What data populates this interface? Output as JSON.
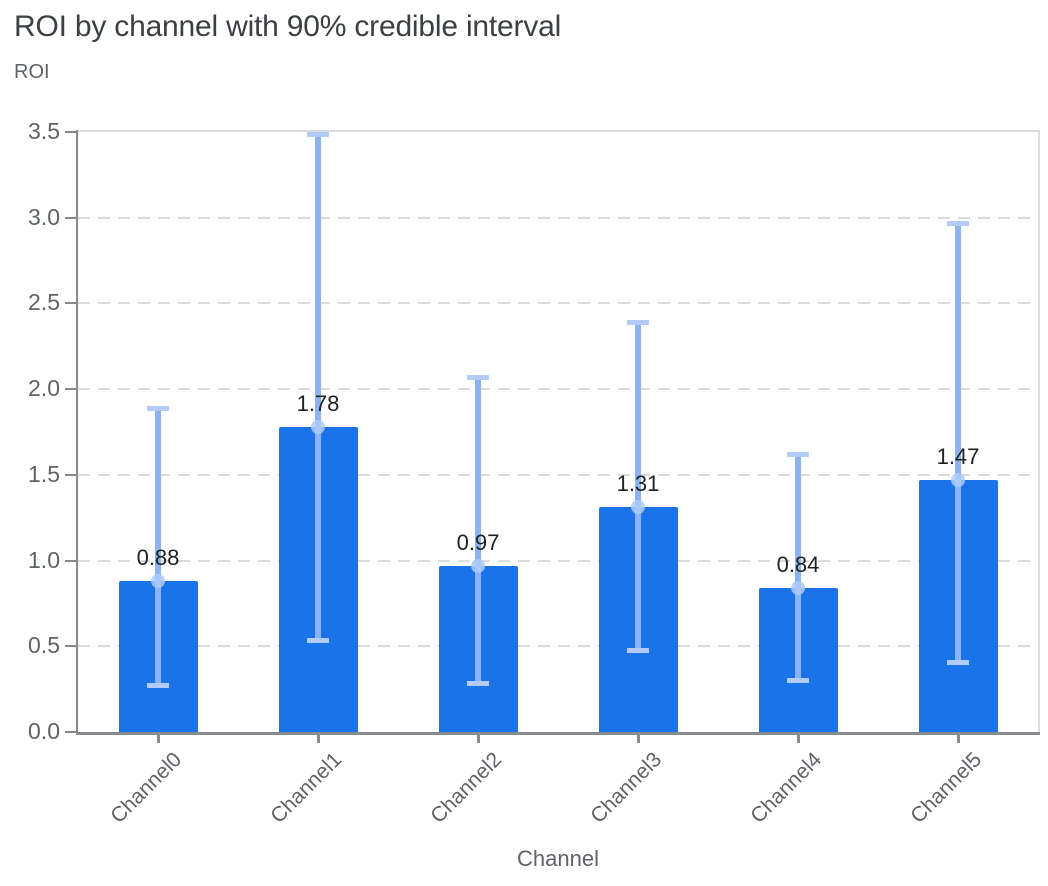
{
  "title": "ROI by channel with 90% credible interval",
  "y_axis_label": "ROI",
  "x_axis_label": "Channel",
  "colors": {
    "bar": "#1a73e8",
    "error_line": "#8db3f4",
    "error_cap": "#b3cbf8",
    "error_marker": "rgba(174,203,250,0.85)",
    "gridline": "#dadce0",
    "axis": "#85898d",
    "tick_text": "#5f6368",
    "title_text": "#3c4043",
    "value_text": "#1f2123"
  },
  "chart_data": {
    "type": "bar",
    "title": "ROI by channel with 90% credible interval",
    "xlabel": "Channel",
    "ylabel": "ROI",
    "categories": [
      "Channel0",
      "Channel1",
      "Channel2",
      "Channel3",
      "Channel4",
      "Channel5"
    ],
    "series": [
      {
        "name": "ROI",
        "values": [
          0.88,
          1.78,
          0.97,
          1.31,
          0.84,
          1.47
        ]
      }
    ],
    "data_labels": [
      "0.88",
      "1.78",
      "0.97",
      "1.31",
      "0.84",
      "1.47"
    ],
    "error_bars": {
      "label": "90% credible interval",
      "low": [
        0.27,
        0.53,
        0.28,
        0.47,
        0.3,
        0.4
      ],
      "high": [
        1.89,
        3.49,
        2.07,
        2.39,
        1.62,
        2.97
      ]
    },
    "ylim": [
      0,
      3.5
    ],
    "yticks": [
      0.0,
      0.5,
      1.0,
      1.5,
      2.0,
      2.5,
      3.0,
      3.5
    ],
    "grid": "horizontal-dashed",
    "legend": "none"
  }
}
